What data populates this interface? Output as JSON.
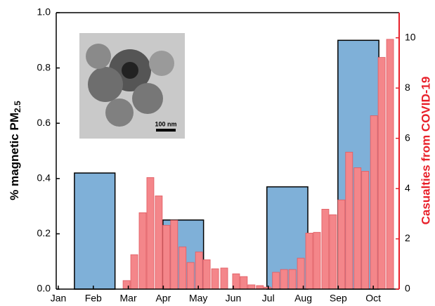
{
  "chart_data": {
    "type": "bar",
    "ylabel": "% magnetic PM",
    "ylabel_subscript": "2.5",
    "y2label": "Casualties from COVID-19",
    "inset_scale_bar": "100 nm",
    "xlim": [
      0.94,
      10.74
    ],
    "xticks": [
      {
        "value": 1,
        "label": "Jan"
      },
      {
        "value": 2,
        "label": "Feb"
      },
      {
        "value": 3,
        "label": "Mar"
      },
      {
        "value": 4,
        "label": "Apr"
      },
      {
        "value": 5,
        "label": "May"
      },
      {
        "value": 6,
        "label": "Jun"
      },
      {
        "value": 7,
        "label": "Jul"
      },
      {
        "value": 8,
        "label": "Aug"
      },
      {
        "value": 9,
        "label": "Sep"
      },
      {
        "value": 10,
        "label": "Oct"
      }
    ],
    "ylim": [
      0,
      1
    ],
    "yticks": [
      {
        "value": 0,
        "label": "0.0"
      },
      0.2,
      0.4,
      0.6,
      0.8,
      {
        "value": 1,
        "label": "1.0"
      }
    ],
    "y2lim": [
      0,
      11
    ],
    "y2ticks": [
      0,
      2,
      4,
      6,
      8,
      10
    ],
    "y2color": "#e8202a",
    "series": [
      {
        "color": "#7fb0d8",
        "x_start": [
          1.46,
          3.99,
          6.96,
          8.99
        ],
        "x_end": [
          2.62,
          5.15,
          8.13,
          10.16
        ],
        "values": [
          0.42,
          0.25,
          0.37,
          0.9
        ]
      },
      {
        "color": "#f4868a",
        "axis": "y2",
        "x": [
          2.95,
          3.17,
          3.41,
          3.63,
          3.87,
          4.09,
          4.31,
          4.55,
          4.78,
          5.02,
          5.24,
          5.48,
          5.74,
          6.08,
          6.3,
          6.52,
          6.76,
          6.98,
          7.22,
          7.45,
          7.69,
          7.93,
          8.17,
          8.39,
          8.63,
          8.85,
          9.09,
          9.31,
          9.55,
          9.77,
          10.02,
          10.24,
          10.48
        ],
        "values": [
          0.34,
          1.37,
          3.04,
          4.44,
          3.71,
          2.54,
          2.74,
          1.68,
          1.06,
          1.48,
          1.17,
          0.81,
          0.84,
          0.61,
          0.5,
          0.17,
          0.14,
          0.08,
          0.67,
          0.78,
          0.78,
          1.23,
          2.23,
          2.26,
          3.18,
          2.96,
          3.55,
          5.45,
          4.83,
          4.69,
          6.9,
          9.22,
          9.94
        ]
      }
    ]
  }
}
